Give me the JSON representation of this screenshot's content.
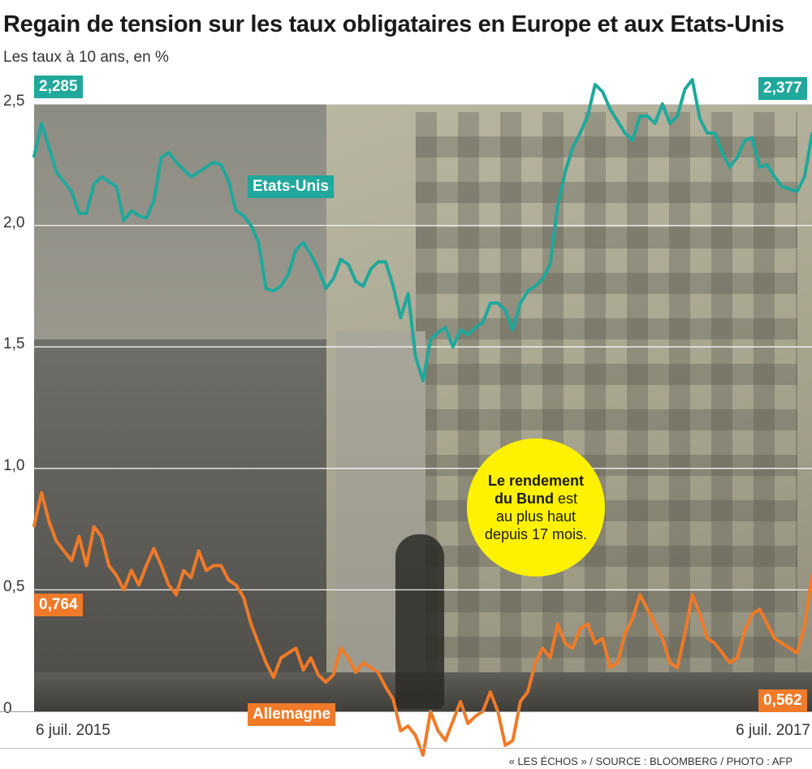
{
  "title": "Regain de tension sur les taux obligataires en Europe et aux Etats-Unis",
  "subtitle": "Les taux à 10 ans, en %",
  "source": "« LES ÉCHOS » / SOURCE : BLOOMBERG / PHOTO : AFP",
  "annotation": {
    "line1_bold": "Le rendement",
    "line2_bold": "du Bund",
    "line2_rest": " est",
    "line3": "au plus haut",
    "line4": "depuis 17 mois."
  },
  "colors": {
    "us": "#1fa89b",
    "de": "#f07a28",
    "bubble": "#fff200"
  },
  "chart_data": {
    "type": "line",
    "x_start_label": "6 juil. 2015",
    "x_end_label": "6 juil. 2017",
    "ylim": [
      0,
      2.5
    ],
    "yticks": [
      "0",
      "0,5",
      "1,0",
      "1,5",
      "2,0",
      "2,5"
    ],
    "grid": true,
    "series": [
      {
        "name": "Etats-Unis",
        "color": "#1fa89b",
        "start_label": "2,285",
        "end_label": "2,377",
        "x": [
          "2015-07-06",
          "2015-07-13",
          "2015-07-20",
          "2015-07-27",
          "2015-08-03",
          "2015-08-10",
          "2015-08-17",
          "2015-08-24",
          "2015-08-31",
          "2015-09-07",
          "2015-09-14",
          "2015-09-21",
          "2015-09-28",
          "2015-10-05",
          "2015-10-12",
          "2015-10-19",
          "2015-10-26",
          "2015-11-02",
          "2015-11-09",
          "2015-11-16",
          "2015-11-23",
          "2015-11-30",
          "2015-12-07",
          "2015-12-14",
          "2015-12-21",
          "2015-12-28",
          "2016-01-04",
          "2016-01-11",
          "2016-01-18",
          "2016-01-25",
          "2016-02-01",
          "2016-02-08",
          "2016-02-15",
          "2016-02-22",
          "2016-02-29",
          "2016-03-07",
          "2016-03-14",
          "2016-03-21",
          "2016-03-28",
          "2016-04-04",
          "2016-04-11",
          "2016-04-18",
          "2016-04-25",
          "2016-05-02",
          "2016-05-09",
          "2016-05-16",
          "2016-05-23",
          "2016-05-30",
          "2016-06-06",
          "2016-06-13",
          "2016-06-20",
          "2016-06-27",
          "2016-07-04",
          "2016-07-11",
          "2016-07-18",
          "2016-07-25",
          "2016-08-01",
          "2016-08-08",
          "2016-08-15",
          "2016-08-22",
          "2016-08-29",
          "2016-09-05",
          "2016-09-12",
          "2016-09-19",
          "2016-09-26",
          "2016-10-03",
          "2016-10-10",
          "2016-10-17",
          "2016-10-24",
          "2016-10-31",
          "2016-11-07",
          "2016-11-14",
          "2016-11-21",
          "2016-11-28",
          "2016-12-05",
          "2016-12-12",
          "2016-12-19",
          "2016-12-26",
          "2017-01-02",
          "2017-01-09",
          "2017-01-16",
          "2017-01-23",
          "2017-01-30",
          "2017-02-06",
          "2017-02-13",
          "2017-02-20",
          "2017-02-27",
          "2017-03-06",
          "2017-03-13",
          "2017-03-20",
          "2017-03-27",
          "2017-04-03",
          "2017-04-10",
          "2017-04-17",
          "2017-04-24",
          "2017-05-01",
          "2017-05-08",
          "2017-05-15",
          "2017-05-22",
          "2017-05-29",
          "2017-06-05",
          "2017-06-12",
          "2017-06-19",
          "2017-06-26",
          "2017-07-03"
        ],
        "values": [
          2.285,
          2.42,
          2.32,
          2.22,
          2.18,
          2.14,
          2.05,
          2.05,
          2.17,
          2.2,
          2.18,
          2.16,
          2.02,
          2.06,
          2.04,
          2.03,
          2.1,
          2.28,
          2.3,
          2.26,
          2.23,
          2.2,
          2.22,
          2.24,
          2.26,
          2.25,
          2.18,
          2.06,
          2.04,
          2.0,
          1.93,
          1.74,
          1.73,
          1.75,
          1.8,
          1.9,
          1.93,
          1.88,
          1.82,
          1.74,
          1.78,
          1.86,
          1.84,
          1.77,
          1.75,
          1.82,
          1.85,
          1.85,
          1.75,
          1.62,
          1.72,
          1.46,
          1.36,
          1.53,
          1.56,
          1.58,
          1.5,
          1.57,
          1.55,
          1.58,
          1.6,
          1.68,
          1.68,
          1.65,
          1.57,
          1.68,
          1.73,
          1.75,
          1.78,
          1.84,
          2.08,
          2.22,
          2.32,
          2.38,
          2.45,
          2.58,
          2.55,
          2.48,
          2.43,
          2.38,
          2.35,
          2.45,
          2.45,
          2.42,
          2.5,
          2.42,
          2.45,
          2.56,
          2.6,
          2.44,
          2.38,
          2.38,
          2.3,
          2.24,
          2.28,
          2.35,
          2.36,
          2.24,
          2.25,
          2.2,
          2.16,
          2.15,
          2.14,
          2.2,
          2.377
        ]
      },
      {
        "name": "Allemagne",
        "color": "#f07a28",
        "start_label": "0,764",
        "end_label": "0,562",
        "x": [
          "2015-07-06",
          "2015-07-13",
          "2015-07-20",
          "2015-07-27",
          "2015-08-03",
          "2015-08-10",
          "2015-08-17",
          "2015-08-24",
          "2015-08-31",
          "2015-09-07",
          "2015-09-14",
          "2015-09-21",
          "2015-09-28",
          "2015-10-05",
          "2015-10-12",
          "2015-10-19",
          "2015-10-26",
          "2015-11-02",
          "2015-11-09",
          "2015-11-16",
          "2015-11-23",
          "2015-11-30",
          "2015-12-07",
          "2015-12-14",
          "2015-12-21",
          "2015-12-28",
          "2016-01-04",
          "2016-01-11",
          "2016-01-18",
          "2016-01-25",
          "2016-02-01",
          "2016-02-08",
          "2016-02-15",
          "2016-02-22",
          "2016-02-29",
          "2016-03-07",
          "2016-03-14",
          "2016-03-21",
          "2016-03-28",
          "2016-04-04",
          "2016-04-11",
          "2016-04-18",
          "2016-04-25",
          "2016-05-02",
          "2016-05-09",
          "2016-05-16",
          "2016-05-23",
          "2016-05-30",
          "2016-06-06",
          "2016-06-13",
          "2016-06-20",
          "2016-06-27",
          "2016-07-04",
          "2016-07-11",
          "2016-07-18",
          "2016-07-25",
          "2016-08-01",
          "2016-08-08",
          "2016-08-15",
          "2016-08-22",
          "2016-08-29",
          "2016-09-05",
          "2016-09-12",
          "2016-09-19",
          "2016-09-26",
          "2016-10-03",
          "2016-10-10",
          "2016-10-17",
          "2016-10-24",
          "2016-10-31",
          "2016-11-07",
          "2016-11-14",
          "2016-11-21",
          "2016-11-28",
          "2016-12-05",
          "2016-12-12",
          "2016-12-19",
          "2016-12-26",
          "2017-01-02",
          "2017-01-09",
          "2017-01-16",
          "2017-01-23",
          "2017-01-30",
          "2017-02-06",
          "2017-02-13",
          "2017-02-20",
          "2017-02-27",
          "2017-03-06",
          "2017-03-13",
          "2017-03-20",
          "2017-03-27",
          "2017-04-03",
          "2017-04-10",
          "2017-04-17",
          "2017-04-24",
          "2017-05-01",
          "2017-05-08",
          "2017-05-15",
          "2017-05-22",
          "2017-05-29",
          "2017-06-05",
          "2017-06-12",
          "2017-06-19",
          "2017-06-26",
          "2017-07-03"
        ],
        "values": [
          0.764,
          0.9,
          0.78,
          0.7,
          0.66,
          0.62,
          0.72,
          0.6,
          0.76,
          0.72,
          0.6,
          0.56,
          0.5,
          0.58,
          0.52,
          0.6,
          0.67,
          0.6,
          0.52,
          0.48,
          0.58,
          0.55,
          0.66,
          0.58,
          0.6,
          0.6,
          0.54,
          0.52,
          0.47,
          0.36,
          0.28,
          0.2,
          0.14,
          0.22,
          0.24,
          0.26,
          0.17,
          0.22,
          0.15,
          0.12,
          0.15,
          0.26,
          0.22,
          0.16,
          0.2,
          0.18,
          0.16,
          0.1,
          0.05,
          -0.08,
          -0.06,
          -0.1,
          -0.18,
          0.0,
          -0.08,
          -0.12,
          -0.04,
          0.04,
          -0.05,
          -0.02,
          0.0,
          0.08,
          0.0,
          -0.14,
          -0.12,
          0.04,
          0.08,
          0.2,
          0.26,
          0.22,
          0.36,
          0.28,
          0.26,
          0.34,
          0.36,
          0.28,
          0.3,
          0.18,
          0.2,
          0.32,
          0.38,
          0.48,
          0.42,
          0.36,
          0.3,
          0.2,
          0.18,
          0.32,
          0.48,
          0.4,
          0.3,
          0.28,
          0.24,
          0.2,
          0.22,
          0.33,
          0.4,
          0.42,
          0.36,
          0.3,
          0.28,
          0.26,
          0.24,
          0.35,
          0.562
        ]
      }
    ]
  }
}
